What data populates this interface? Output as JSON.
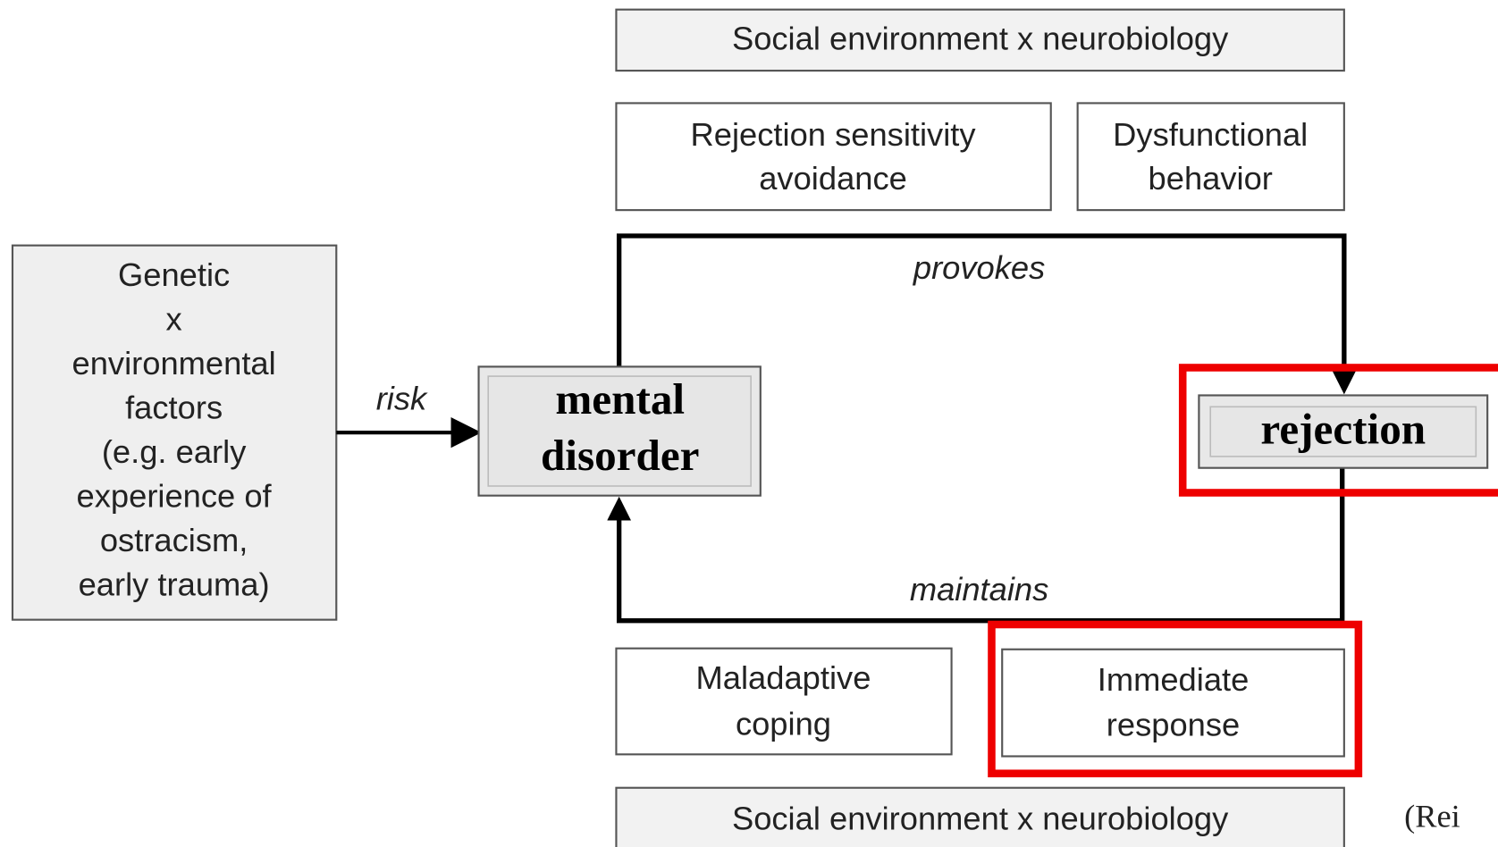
{
  "top_label": "Social environment x neurobiology",
  "upper_boxes": [
    {
      "lines": [
        "Rejection sensitivity",
        "avoidance"
      ]
    },
    {
      "lines": [
        "Dysfunctional",
        "behavior"
      ]
    }
  ],
  "risk_box": {
    "lines": [
      "Genetic",
      "x",
      "environmental",
      "factors",
      "(e.g. early",
      "experience of",
      "ostracism,",
      "early trauma)"
    ]
  },
  "risk_label": "risk",
  "center_node": {
    "lines": [
      "mental",
      "disorder"
    ]
  },
  "provokes_label": "provokes",
  "rejection_node": "rejection",
  "maintains_label": "maintains",
  "lower_boxes": [
    {
      "lines": [
        "Maladaptive",
        "coping"
      ]
    },
    {
      "lines": [
        "Immediate",
        "response"
      ]
    }
  ],
  "bottom_label": "Social environment x neurobiology",
  "citation": "(Rei"
}
